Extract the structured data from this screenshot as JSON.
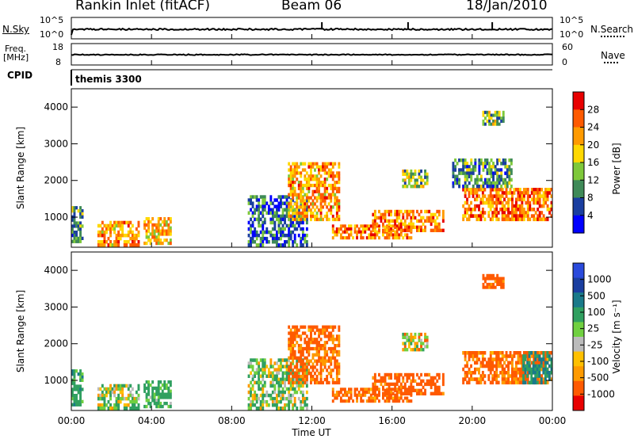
{
  "header": {
    "station": "Rankin Inlet (fitACF)",
    "beam": "Beam 06",
    "date": "18/Jan/2010"
  },
  "top_panels": {
    "nsky_label": "N.Sky",
    "nsearch_label": "N.Search",
    "nsky_ticks": [
      "10^5",
      "10^0"
    ],
    "nsearch_ticks": [
      "10^5",
      "10^0"
    ],
    "freq_label": "Freq.",
    "freq_unit": "[MHz]",
    "freq_ticks": [
      "18",
      "8"
    ],
    "nave_label": "Nave",
    "nave_ticks": [
      "60",
      "0"
    ],
    "cpid_label": "CPID",
    "cpid_value": "themis 3300"
  },
  "x_axis": {
    "ticks": [
      "00:00",
      "04:00",
      "08:00",
      "12:00",
      "16:00",
      "20:00",
      "00:00"
    ],
    "title": "Time UT"
  },
  "colors": {
    "power_scale": [
      "#0000ff",
      "#1a3ea0",
      "#3f8a58",
      "#7ec83a",
      "#ffd800",
      "#ff9a00",
      "#ff5a00",
      "#e80000"
    ],
    "velocity_scale": [
      "#e80000",
      "#ff5a00",
      "#ff9a00",
      "#ffc000",
      "#bbbbbb",
      "#70d040",
      "#30a060",
      "#1a7a8a",
      "#1a3ea0",
      "#2a4adc"
    ]
  },
  "power_colorbar": {
    "title": "Power [dB]",
    "ticks": [
      "28",
      "24",
      "20",
      "16",
      "12",
      "8",
      "4"
    ]
  },
  "velocity_colorbar": {
    "title": "Velocity [m s⁻¹]",
    "ticks": [
      "1000",
      "500",
      "100",
      "25",
      "-25",
      "-100",
      "-500",
      "-1000"
    ]
  },
  "chart_data": [
    {
      "type": "heatmap",
      "title": "Power",
      "xlabel": "Time UT",
      "ylabel": "Slant Range [km]",
      "xlim": [
        0,
        24
      ],
      "ylim": [
        180,
        4500
      ],
      "yticks": [
        1000,
        2000,
        3000,
        4000
      ],
      "colorbar": {
        "label": "Power [dB]",
        "range": [
          0,
          30
        ]
      },
      "regions": [
        {
          "t0": 0.0,
          "t1": 0.6,
          "r0": 300,
          "r1": 1300,
          "value": 10
        },
        {
          "t0": 1.3,
          "t1": 3.4,
          "r0": 200,
          "r1": 900,
          "value": 22
        },
        {
          "t0": 3.6,
          "t1": 5.0,
          "r0": 250,
          "r1": 1000,
          "value": 20
        },
        {
          "t0": 8.8,
          "t1": 11.8,
          "r0": 200,
          "r1": 1600,
          "value": 8
        },
        {
          "t0": 10.8,
          "t1": 13.4,
          "r0": 900,
          "r1": 2500,
          "value": 22
        },
        {
          "t0": 13.0,
          "t1": 17.0,
          "r0": 400,
          "r1": 800,
          "value": 24
        },
        {
          "t0": 15.0,
          "t1": 18.6,
          "r0": 600,
          "r1": 1200,
          "value": 24
        },
        {
          "t0": 16.5,
          "t1": 17.8,
          "r0": 1800,
          "r1": 2300,
          "value": 14
        },
        {
          "t0": 19.5,
          "t1": 24.0,
          "r0": 900,
          "r1": 1800,
          "value": 24
        },
        {
          "t0": 19.0,
          "t1": 22.0,
          "r0": 1800,
          "r1": 2600,
          "value": 10
        },
        {
          "t0": 20.5,
          "t1": 21.6,
          "r0": 3500,
          "r1": 3900,
          "value": 14
        }
      ]
    },
    {
      "type": "heatmap",
      "title": "Velocity",
      "xlabel": "Time UT",
      "ylabel": "Slant Range [km]",
      "xlim": [
        0,
        24
      ],
      "ylim": [
        180,
        4500
      ],
      "yticks": [
        1000,
        2000,
        3000,
        4000
      ],
      "colorbar": {
        "label": "Velocity [m s⁻¹]",
        "range": [
          -1000,
          1000
        ]
      },
      "regions": [
        {
          "t0": 0.0,
          "t1": 0.6,
          "r0": 300,
          "r1": 1300,
          "value": 200
        },
        {
          "t0": 1.3,
          "t1": 3.4,
          "r0": 200,
          "r1": 900,
          "value": 60
        },
        {
          "t0": 3.6,
          "t1": 5.0,
          "r0": 250,
          "r1": 1000,
          "value": 150
        },
        {
          "t0": 8.8,
          "t1": 11.8,
          "r0": 200,
          "r1": 1600,
          "value": 80
        },
        {
          "t0": 10.8,
          "t1": 13.4,
          "r0": 900,
          "r1": 2500,
          "value": -150
        },
        {
          "t0": 13.0,
          "t1": 17.0,
          "r0": 400,
          "r1": 800,
          "value": -150
        },
        {
          "t0": 15.0,
          "t1": 18.6,
          "r0": 600,
          "r1": 1200,
          "value": -200
        },
        {
          "t0": 16.5,
          "t1": 17.8,
          "r0": 1800,
          "r1": 2300,
          "value": 0
        },
        {
          "t0": 19.5,
          "t1": 24.0,
          "r0": 900,
          "r1": 1800,
          "value": -150
        },
        {
          "t0": 22.5,
          "t1": 24.0,
          "r0": 900,
          "r1": 1800,
          "value": 300
        },
        {
          "t0": 20.5,
          "t1": 21.6,
          "r0": 3500,
          "r1": 3900,
          "value": -200
        }
      ]
    }
  ]
}
